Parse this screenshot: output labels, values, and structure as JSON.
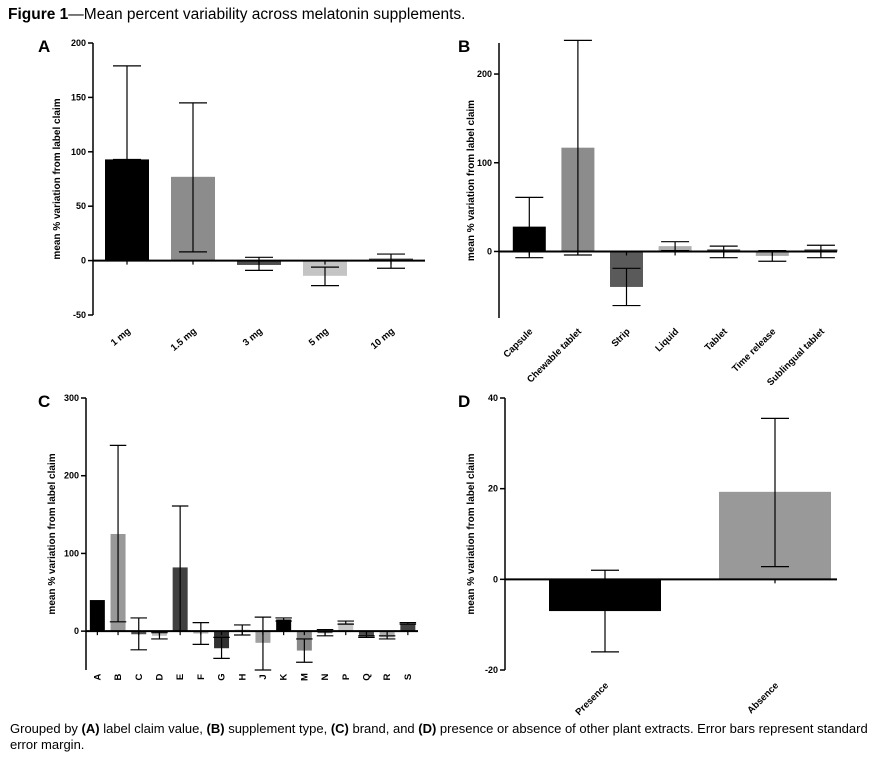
{
  "figure": {
    "label": "Figure 1",
    "title_text": "—Mean percent variability across melatonin supplements."
  },
  "caption": {
    "lead": "Grouped by ",
    "a_tag": "(A)",
    "a_text": " label claim value, ",
    "b_tag": "(B)",
    "b_text": " supplement type, ",
    "c_tag": "(C)",
    "c_text": " brand, and ",
    "d_tag": "(D)",
    "d_text": " presence or absence of other plant extracts. Error bars represent standard error margin."
  },
  "chart_data": [
    {
      "panel": "A",
      "type": "bar",
      "ylabel": "mean % variation from label claim",
      "ylim": [
        -50,
        200
      ],
      "yticks": [
        -50,
        0,
        50,
        100,
        150,
        200
      ],
      "categories": [
        "1 mg",
        "1.5 mg",
        "3 mg",
        "5 mg",
        "10 mg"
      ],
      "values": [
        93,
        77,
        -4,
        -14,
        0
      ],
      "err_low": [
        93,
        8,
        -9,
        -23,
        -7
      ],
      "err_high": [
        179,
        145,
        3,
        -6,
        6
      ],
      "colors": [
        "#000000",
        "#8c8c8c",
        "#4d4d4d",
        "#c4c4c4",
        "#3a3a3a"
      ]
    },
    {
      "panel": "B",
      "type": "bar",
      "ylabel": "mean % variation from label claim",
      "ylim": [
        -75,
        235
      ],
      "yticks": [
        0,
        100,
        200
      ],
      "categories": [
        "Capsule",
        "Chewable tablet",
        "Strip",
        "Liquid",
        "Tablet",
        "Time release",
        "Sublingual tablet"
      ],
      "values": [
        28,
        117,
        -40,
        6,
        1,
        -5,
        0
      ],
      "err_low": [
        -7,
        -4,
        -61,
        1,
        -7,
        -11,
        -7
      ],
      "err_high": [
        61,
        238,
        -19,
        11,
        6,
        1,
        7
      ],
      "colors": [
        "#000000",
        "#8c8c8c",
        "#5a5a5a",
        "#b0b0b0",
        "#3a3a3a",
        "#a8a8a8",
        "#3a3a3a"
      ]
    },
    {
      "panel": "C",
      "type": "bar",
      "ylabel": "mean % variation from label claim",
      "ylim": [
        -50,
        300
      ],
      "yticks": [
        0,
        100,
        200,
        300
      ],
      "categories": [
        "A",
        "B",
        "C",
        "D",
        "E",
        "F",
        "G",
        "H",
        "J",
        "K",
        "M",
        "N",
        "P",
        "Q",
        "R",
        "S"
      ],
      "values": [
        40,
        125,
        -4,
        -6,
        82,
        -3,
        -22,
        0,
        -15,
        15,
        -25,
        -2,
        11,
        -7,
        -8,
        10
      ],
      "err_low": [
        40,
        12,
        -24,
        -10,
        0,
        -17,
        -35,
        -5,
        -50,
        13,
        -40,
        -6,
        9,
        -8,
        -10,
        9
      ],
      "err_high": [
        40,
        239,
        17,
        -2,
        161,
        11,
        -8,
        8,
        18,
        17,
        -10,
        2,
        13,
        -6,
        -6,
        11
      ],
      "colors": [
        "#000000",
        "#999999",
        "#505050",
        "#c0c0c0",
        "#404040",
        "#aaaaaa",
        "#303030",
        "#e6e6e6",
        "#a0a0a0",
        "#000000",
        "#888888",
        "#555555",
        "#c8c8c8",
        "#505050",
        "#b0b0b0",
        "#404040"
      ]
    },
    {
      "panel": "D",
      "type": "bar",
      "ylabel": "mean % variation from label claim",
      "ylim": [
        -20,
        40
      ],
      "yticks": [
        -20,
        0,
        20,
        40
      ],
      "categories": [
        "Presence",
        "Absence"
      ],
      "values": [
        -7,
        19.3
      ],
      "err_low": [
        -16,
        2.8
      ],
      "err_high": [
        2,
        35.5
      ],
      "colors": [
        "#000000",
        "#999999"
      ]
    }
  ]
}
